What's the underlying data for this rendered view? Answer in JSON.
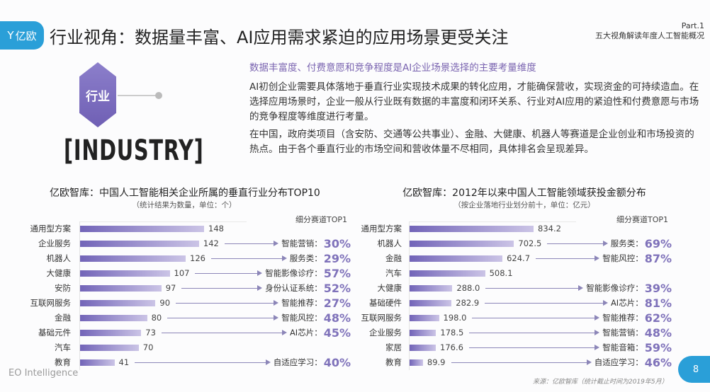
{
  "header": {
    "logo_text": "亿欧",
    "title": "行业视角：数据量丰富、AI应用需求紧迫的应用场景更受关注",
    "part": "Part.1",
    "part_subtitle": "五大视角解读年度人工智能概况"
  },
  "intro": {
    "badge": "行业",
    "keyword": "[INDUSTRY]",
    "heading": "数据丰富度、付费意愿和竞争程度是AI企业场景选择的主要考量维度",
    "paragraphs": [
      "AI初创企业需要具体落地于垂直行业实现技术成果的转化应用，才能确保营收，实现资金的可持续造血。在选择应用场景时，企业一般从行业既有数据的丰富度和闭环关系、行业对AI应用的紧迫性和付费意愿与市场的竞争程度等维度进行考量。",
      "在中国，政府类项目（含安防、交通等公共事业）、金融、大健康、机器人等赛道是企业创业和市场投资的热点。由于各个垂直行业的市场空间和营收体量不尽相同，具体排名会呈现差异。"
    ]
  },
  "chart_data": [
    {
      "type": "bar",
      "orientation": "horizontal",
      "title": "亿欧智库：中国人工智能相关企业所属的垂直行业分布TOP10",
      "subtitle": "（统计结果为数量，单位：个）",
      "top1_header": "细分赛道TOP1",
      "categories": [
        "通用型方案",
        "企业服务",
        "机器人",
        "大健康",
        "安防",
        "互联网服务",
        "金融",
        "基础元件",
        "汽车",
        "教育"
      ],
      "values": [
        148,
        142,
        126,
        107,
        97,
        90,
        80,
        73,
        70,
        41
      ],
      "top1": [
        null,
        {
          "label": "智能营销：",
          "pct": "30%"
        },
        {
          "label": "服务类：",
          "pct": "29%"
        },
        {
          "label": "智能影像诊疗：",
          "pct": "57%"
        },
        {
          "label": "身份认证系统：",
          "pct": "52%"
        },
        {
          "label": "智能推荐：",
          "pct": "27%"
        },
        {
          "label": "智能风控：",
          "pct": "48%"
        },
        {
          "label": "AI芯片：",
          "pct": "45%"
        },
        null,
        {
          "label": "自适应学习：",
          "pct": "40%"
        }
      ],
      "value_labels": [
        "148",
        "142",
        "126",
        "107",
        "97",
        "90",
        "80",
        "73",
        "70",
        "41"
      ],
      "color": "#7264b8"
    },
    {
      "type": "bar",
      "orientation": "horizontal",
      "title": "亿欧智库：2012年以来中国人工智能领域获投金额分布",
      "subtitle": "（按企业落地行业划分前十，单位：亿元）",
      "top1_header": "细分赛道TOP1",
      "categories": [
        "通用型方案",
        "机器人",
        "金融",
        "汽车",
        "大健康",
        "基础硬件",
        "互联网服务",
        "企业服务",
        "家居",
        "教育"
      ],
      "values": [
        834.2,
        702.5,
        624.7,
        508.1,
        288.0,
        282.9,
        198.0,
        178.5,
        176.6,
        89.9
      ],
      "value_labels": [
        "834.2",
        "702.5",
        "624.7",
        "508.1",
        "288.0",
        "282.9",
        "198.0",
        "178.5",
        "176.6",
        "89.9"
      ],
      "top1": [
        null,
        {
          "label": "服务类：",
          "pct": "69%"
        },
        {
          "label": "智能风控：",
          "pct": "87%"
        },
        null,
        {
          "label": "智能影像诊疗：",
          "pct": "39%"
        },
        {
          "label": "AI芯片：",
          "pct": "81%"
        },
        {
          "label": "智能推荐：",
          "pct": "62%"
        },
        {
          "label": "智能营销：",
          "pct": "48%"
        },
        {
          "label": "智能音箱：",
          "pct": "59%"
        },
        {
          "label": "自适应学习：",
          "pct": "46%"
        }
      ],
      "color": "#7264b8"
    }
  ],
  "footer": {
    "brand": "EO Intelligence",
    "source": "来源：亿欧智库（统计截止时间为2019年5月）",
    "page": "8"
  }
}
